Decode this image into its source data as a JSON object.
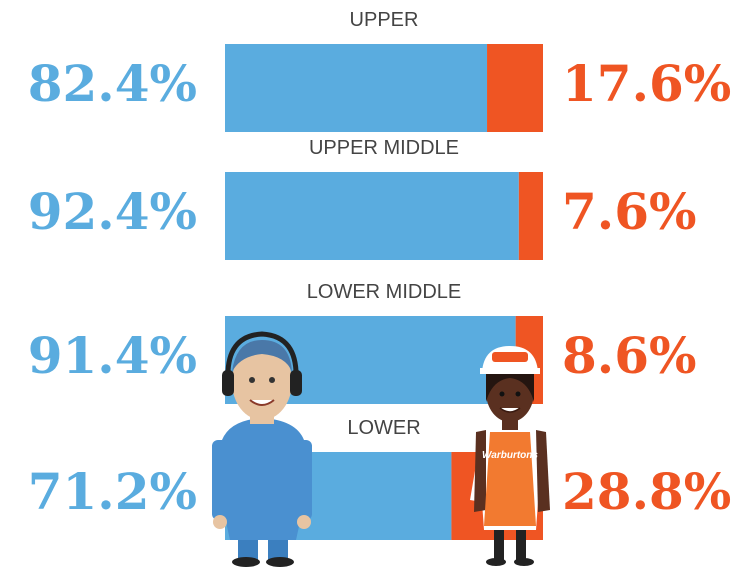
{
  "chart_data": {
    "type": "bar",
    "stacked": true,
    "orientation": "horizontal",
    "categories": [
      "UPPER",
      "UPPER MIDDLE",
      "LOWER MIDDLE",
      "LOWER"
    ],
    "xlim": [
      0,
      100
    ],
    "series": [
      {
        "color": "#5aacdf",
        "values": [
          82.4,
          92.4,
          91.4,
          71.2
        ],
        "value_labels": [
          "82.4%",
          "92.4%",
          "91.4%",
          "71.2%"
        ]
      },
      {
        "color": "#ef5523",
        "values": [
          17.6,
          7.6,
          8.6,
          28.8
        ],
        "value_labels": [
          "17.6%",
          "7.6%",
          "8.6%",
          "28.8%"
        ]
      }
    ],
    "annotations": [
      "Warburtons"
    ]
  }
}
